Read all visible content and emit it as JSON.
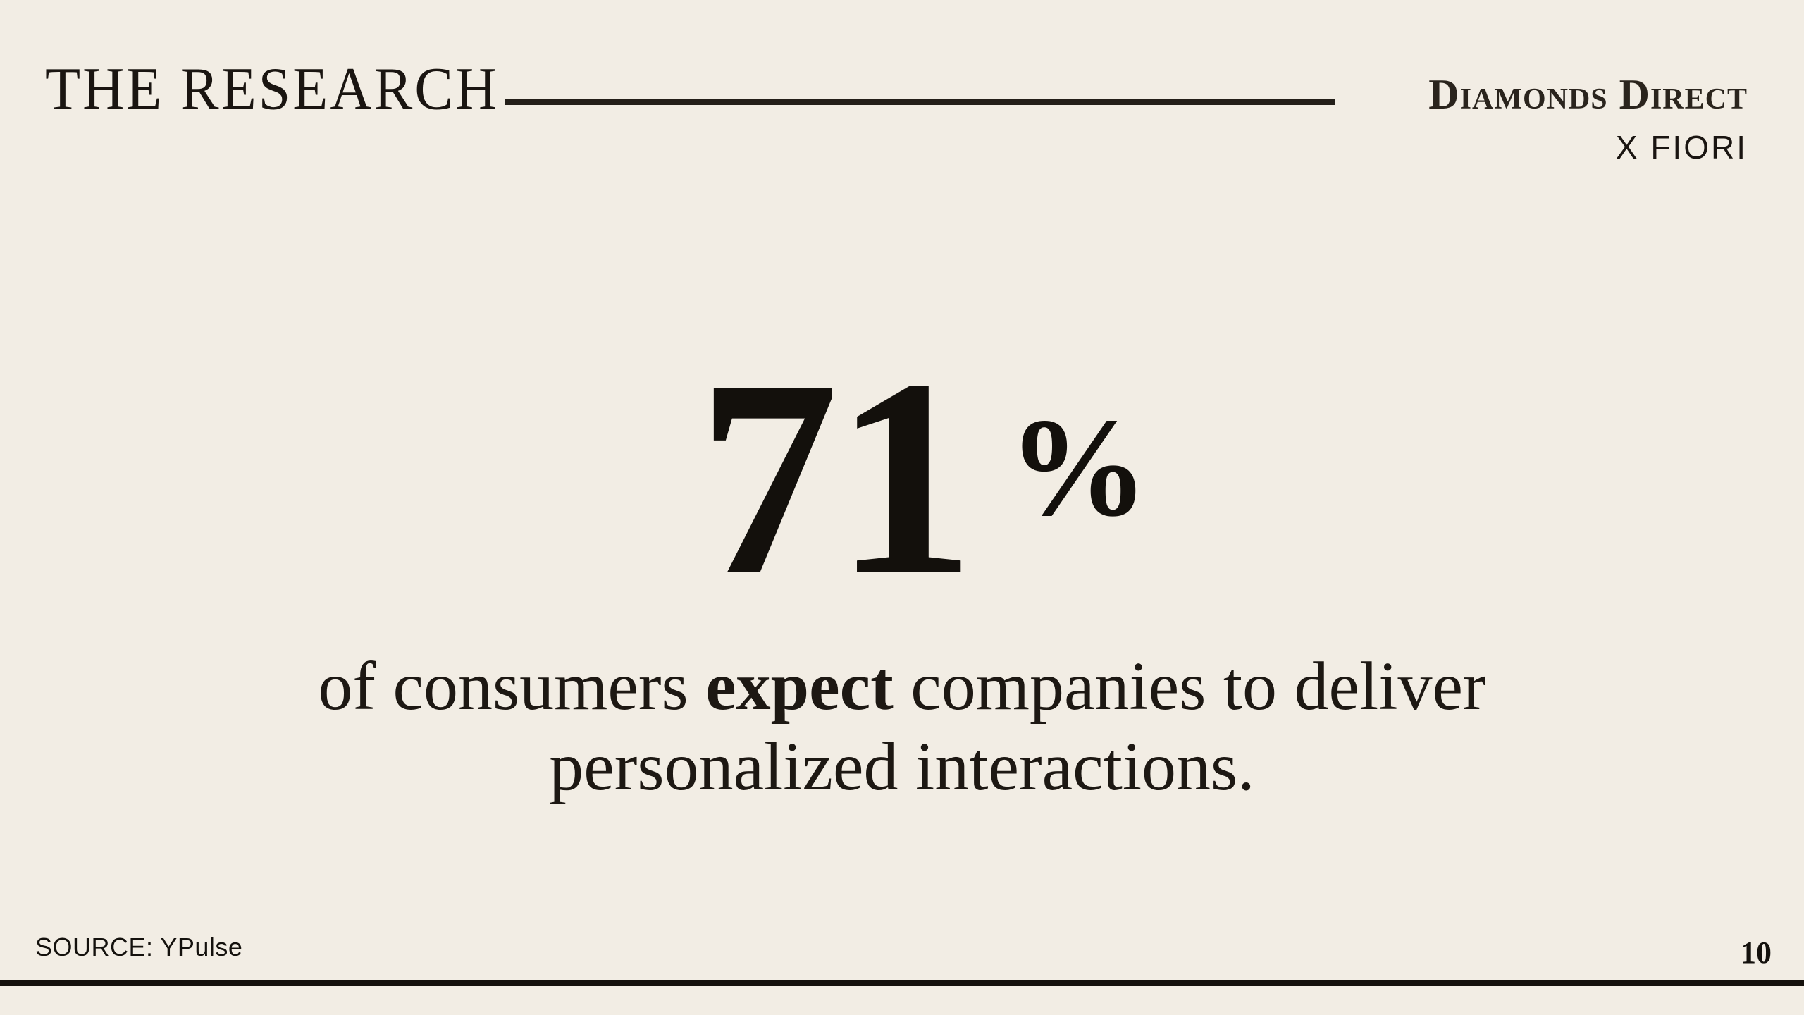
{
  "header": {
    "title": "THE RESEARCH"
  },
  "brand": {
    "name": "Diamonds Direct",
    "subtitle": "X FIORI"
  },
  "stat": {
    "value": "71",
    "unit": "%"
  },
  "statement": {
    "before": "of consumers ",
    "emphasis": "expect",
    "after": " companies to deliver personalized interactions."
  },
  "footer": {
    "source": "SOURCE: YPulse",
    "page_number": "10"
  },
  "colors": {
    "background": "#f2ede4",
    "ink": "#1a1511"
  }
}
